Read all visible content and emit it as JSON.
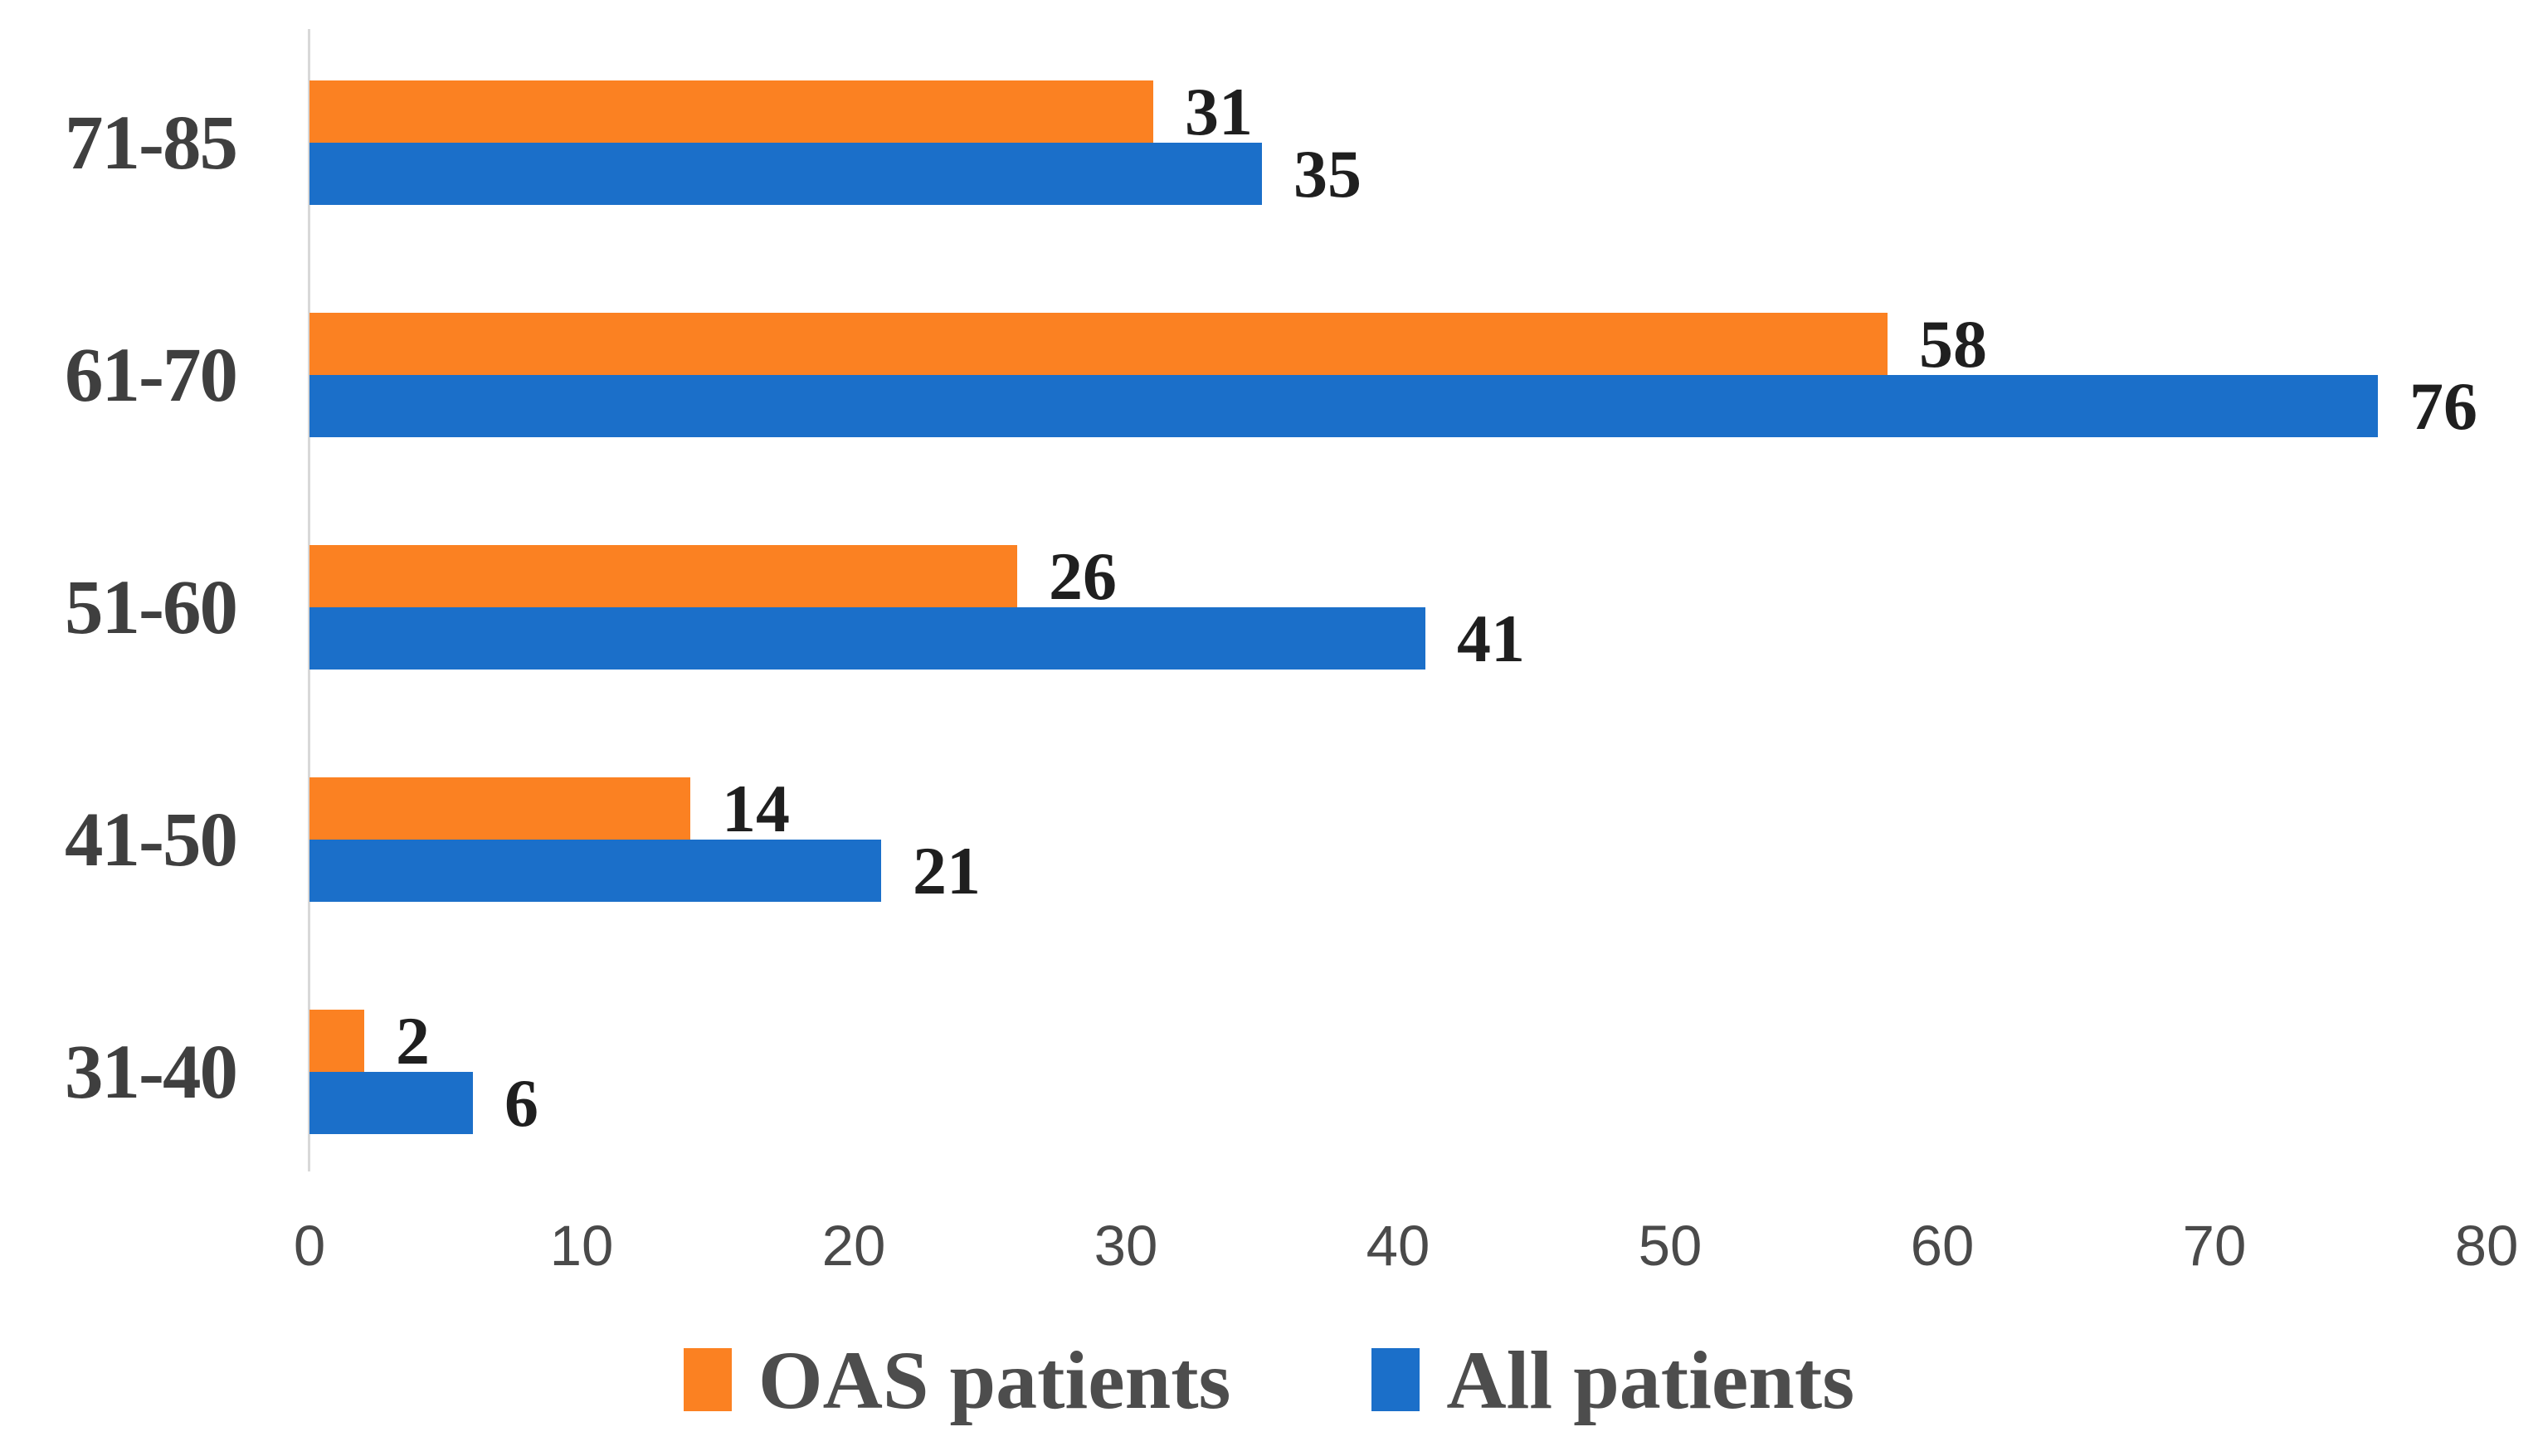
{
  "chart_data": {
    "type": "bar",
    "orientation": "horizontal",
    "title": "",
    "xlabel": "",
    "ylabel": "",
    "categories": [
      "71-85",
      "61-70",
      "51-60",
      "41-50",
      "31-40"
    ],
    "series": [
      {
        "name": "OAS patients",
        "color": "#FB8122",
        "values": [
          31,
          58,
          26,
          14,
          2
        ]
      },
      {
        "name": "All patients",
        "color": "#1B6FC9",
        "values": [
          35,
          76,
          41,
          21,
          6
        ]
      }
    ],
    "xlim": [
      0,
      80
    ],
    "x_ticks": [
      0,
      10,
      20,
      30,
      40,
      50,
      60,
      70,
      80
    ],
    "grid": false,
    "legend_position": "bottom"
  },
  "colors": {
    "series_oas": "#FB8122",
    "series_all": "#1B6FC9",
    "axis_line": "#D8D8D8",
    "category_label": "#3F3F3F",
    "value_label": "#1F1F1F",
    "tick_label": "#4A4A4A",
    "legend_label": "#4D4D4D",
    "background": "#FFFFFF"
  }
}
